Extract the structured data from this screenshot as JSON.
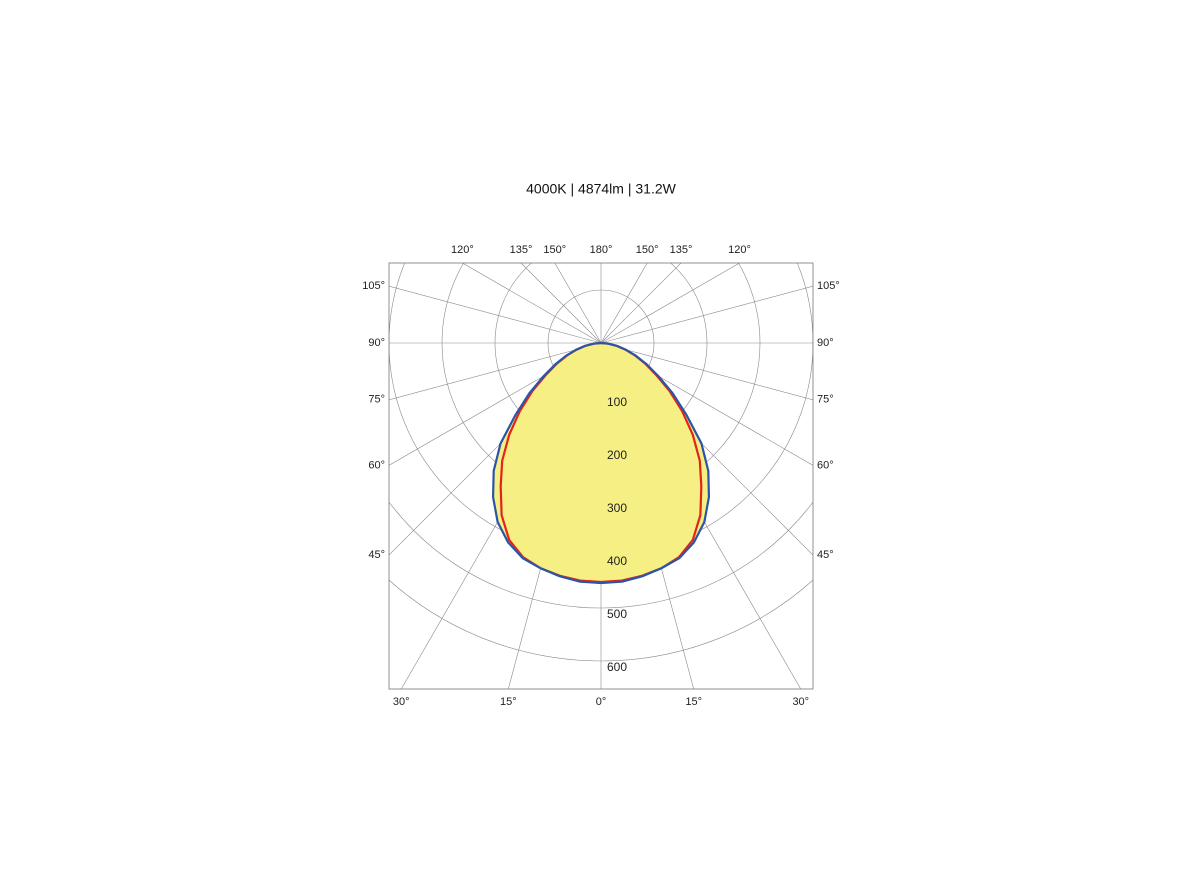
{
  "chart_data": {
    "type": "polar",
    "title": "4000K | 4874lm | 31.2W",
    "x": [
      0,
      5,
      10,
      15,
      20,
      25,
      30,
      35,
      40,
      45,
      50,
      55,
      60,
      65,
      70,
      75,
      80,
      85,
      90
    ],
    "series": [
      {
        "color": "#2b55a6",
        "values": [
          453,
          452,
          447,
          440,
          432,
          415,
          390,
          355,
          315,
          268,
          210,
          165,
          125,
          95,
          70,
          48,
          30,
          14,
          0
        ]
      },
      {
        "color": "#e3241b",
        "values": [
          451,
          450,
          446,
          440,
          430,
          410,
          375,
          330,
          290,
          245,
          200,
          158,
          120,
          92,
          68,
          47,
          29,
          14,
          0
        ]
      }
    ],
    "fill_color": "#f5ef84",
    "rlim": [
      0,
      600
    ],
    "rticks": [
      100,
      200,
      300,
      400,
      500,
      600
    ],
    "angle_ticks_left": [
      {
        "value": 0,
        "label": "0°"
      },
      {
        "value": 15,
        "label": "15°"
      },
      {
        "value": 30,
        "label": "30°"
      },
      {
        "value": 45,
        "label": "45°"
      },
      {
        "value": 60,
        "label": "60°"
      },
      {
        "value": 75,
        "label": "75°"
      },
      {
        "value": 90,
        "label": "90°"
      },
      {
        "value": 105,
        "label": "105°"
      },
      {
        "value": 120,
        "label": "120°"
      },
      {
        "value": 135,
        "label": "135°"
      },
      {
        "value": 150,
        "label": "150°"
      },
      {
        "value": 180,
        "label": "180°"
      }
    ],
    "angle_ticks_right": [
      {
        "value": 15,
        "label": "15°"
      },
      {
        "value": 30,
        "label": "30°"
      },
      {
        "value": 45,
        "label": "45°"
      },
      {
        "value": 60,
        "label": "60°"
      },
      {
        "value": 75,
        "label": "75°"
      },
      {
        "value": 90,
        "label": "90°"
      },
      {
        "value": 105,
        "label": "105°"
      },
      {
        "value": 120,
        "label": "120°"
      },
      {
        "value": 135,
        "label": "135°"
      },
      {
        "value": 150,
        "label": "150°"
      }
    ]
  }
}
